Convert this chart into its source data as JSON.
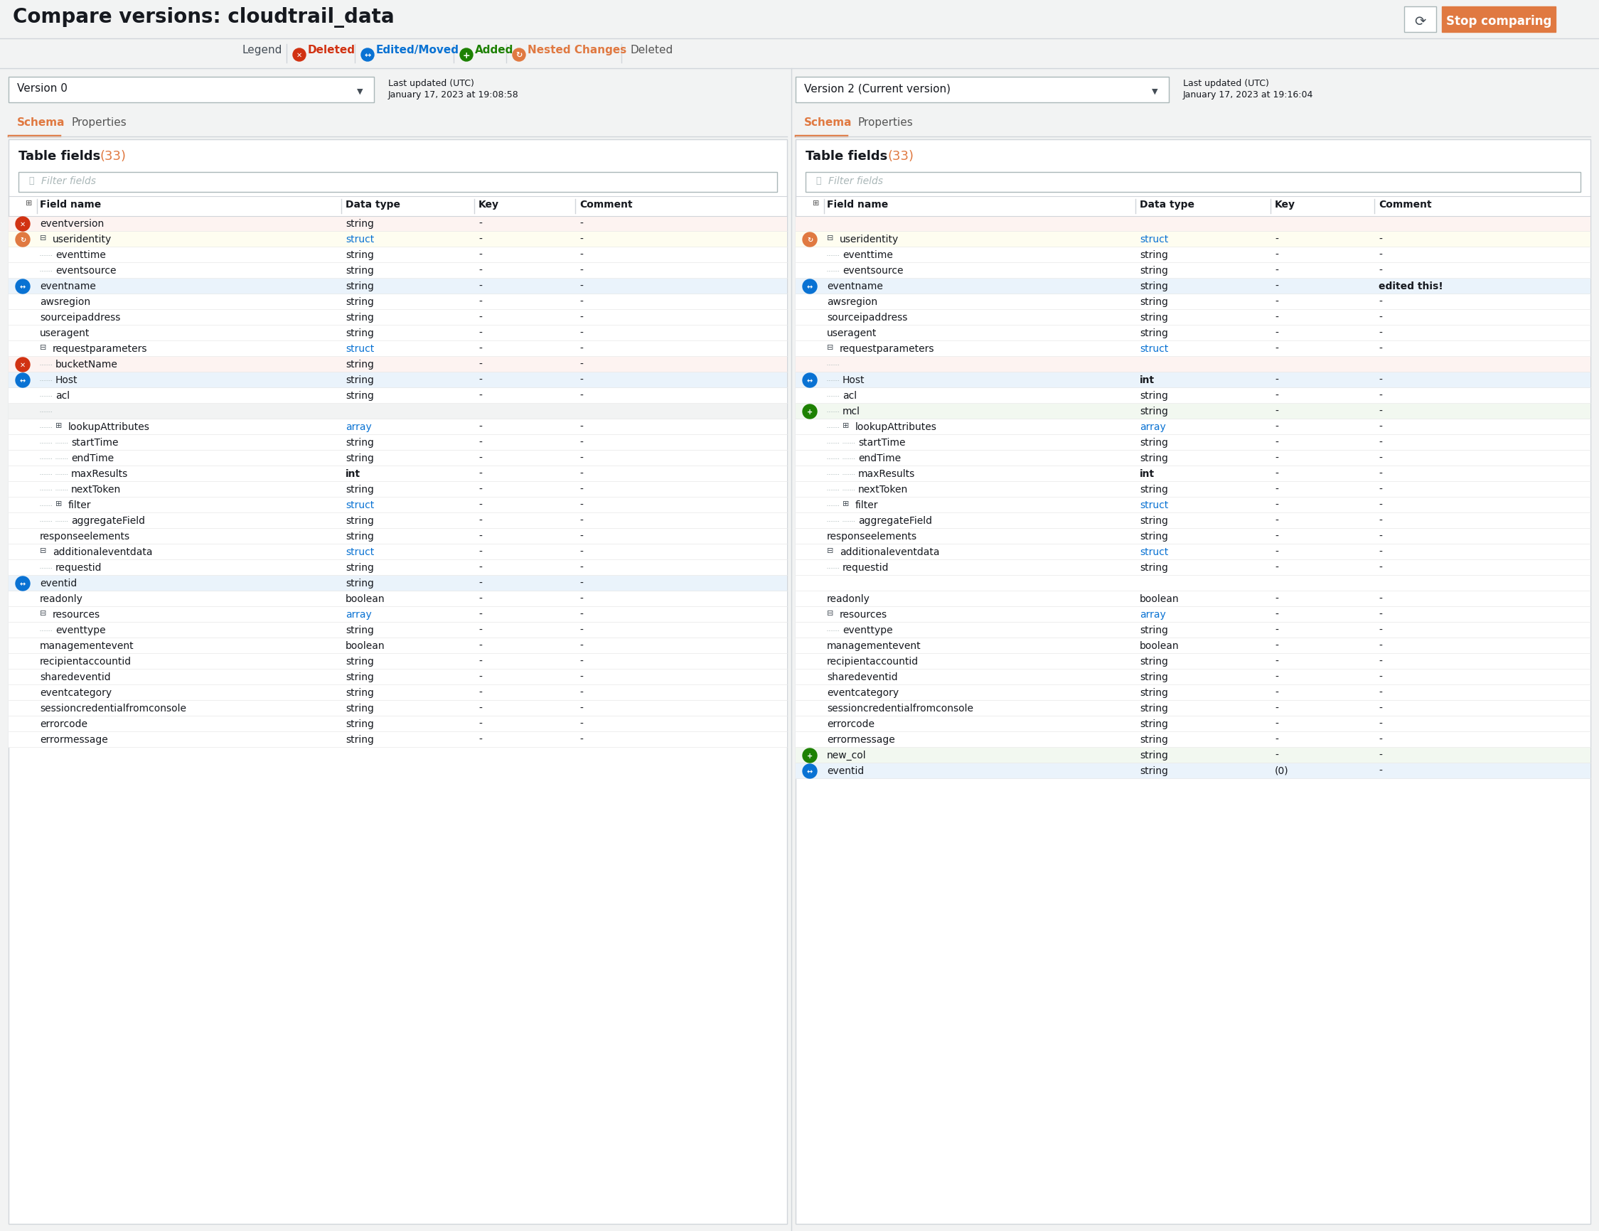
{
  "title": "Compare versions: cloudtrail_data",
  "bg_color": "#f2f3f3",
  "left_panel": {
    "version": "Version 0",
    "last_updated_line1": "Last updated (UTC)",
    "last_updated_line2": "January 17, 2023 at 19:08:58",
    "rows": [
      {
        "icon": "deleted",
        "indent": 0,
        "expand": false,
        "name": "eventversion",
        "dtype": "string",
        "key": "-",
        "comment": "-",
        "bg": "#fdf3f1"
      },
      {
        "icon": "nested",
        "indent": 0,
        "expand": true,
        "name": "useridentity",
        "dtype": "struct",
        "key": "-",
        "comment": "-",
        "bg": "#fefdf0"
      },
      {
        "icon": null,
        "indent": 1,
        "expand": false,
        "name": "eventtime",
        "dtype": "string",
        "key": "-",
        "comment": "-",
        "bg": "#ffffff"
      },
      {
        "icon": null,
        "indent": 1,
        "expand": false,
        "name": "eventsource",
        "dtype": "string",
        "key": "-",
        "comment": "-",
        "bg": "#ffffff"
      },
      {
        "icon": "edited",
        "indent": 0,
        "expand": false,
        "name": "eventname",
        "dtype": "string",
        "key": "-",
        "comment": "-",
        "bg": "#eaf3fb"
      },
      {
        "icon": null,
        "indent": 0,
        "expand": false,
        "name": "awsregion",
        "dtype": "string",
        "key": "-",
        "comment": "-",
        "bg": "#ffffff"
      },
      {
        "icon": null,
        "indent": 0,
        "expand": false,
        "name": "sourceipaddress",
        "dtype": "string",
        "key": "-",
        "comment": "-",
        "bg": "#ffffff"
      },
      {
        "icon": null,
        "indent": 0,
        "expand": false,
        "name": "useragent",
        "dtype": "string",
        "key": "-",
        "comment": "-",
        "bg": "#ffffff"
      },
      {
        "icon": null,
        "indent": 0,
        "expand": true,
        "name": "requestparameters",
        "dtype": "struct",
        "key": "-",
        "comment": "-",
        "bg": "#ffffff"
      },
      {
        "icon": "deleted",
        "indent": 1,
        "expand": false,
        "name": "bucketName",
        "dtype": "string",
        "key": "-",
        "comment": "-",
        "bg": "#fdf3f1"
      },
      {
        "icon": "edited",
        "indent": 1,
        "expand": false,
        "name": "Host",
        "dtype": "string",
        "key": "-",
        "comment": "-",
        "bg": "#eaf3fb"
      },
      {
        "icon": null,
        "indent": 1,
        "expand": false,
        "name": "acl",
        "dtype": "string",
        "key": "-",
        "comment": "-",
        "bg": "#ffffff"
      },
      {
        "icon": null,
        "indent": 1,
        "expand": false,
        "name": "",
        "dtype": "",
        "key": "",
        "comment": "",
        "bg": "#f2f3f3"
      },
      {
        "icon": null,
        "indent": 1,
        "expand": true,
        "name": "lookupAttributes",
        "dtype": "array",
        "key": "-",
        "comment": "-",
        "bg": "#ffffff"
      },
      {
        "icon": null,
        "indent": 2,
        "expand": false,
        "name": "startTime",
        "dtype": "string",
        "key": "-",
        "comment": "-",
        "bg": "#ffffff"
      },
      {
        "icon": null,
        "indent": 2,
        "expand": false,
        "name": "endTime",
        "dtype": "string",
        "key": "-",
        "comment": "-",
        "bg": "#ffffff"
      },
      {
        "icon": null,
        "indent": 2,
        "expand": false,
        "name": "maxResults",
        "dtype": "int",
        "key": "-",
        "comment": "-",
        "bg": "#ffffff"
      },
      {
        "icon": null,
        "indent": 2,
        "expand": false,
        "name": "nextToken",
        "dtype": "string",
        "key": "-",
        "comment": "-",
        "bg": "#ffffff"
      },
      {
        "icon": null,
        "indent": 1,
        "expand": true,
        "name": "filter",
        "dtype": "struct",
        "key": "-",
        "comment": "-",
        "bg": "#ffffff"
      },
      {
        "icon": null,
        "indent": 2,
        "expand": false,
        "name": "aggregateField",
        "dtype": "string",
        "key": "-",
        "comment": "-",
        "bg": "#ffffff"
      },
      {
        "icon": null,
        "indent": 0,
        "expand": false,
        "name": "responseelements",
        "dtype": "string",
        "key": "-",
        "comment": "-",
        "bg": "#ffffff"
      },
      {
        "icon": null,
        "indent": 0,
        "expand": true,
        "name": "additionaleventdata",
        "dtype": "struct",
        "key": "-",
        "comment": "-",
        "bg": "#ffffff"
      },
      {
        "icon": null,
        "indent": 1,
        "expand": false,
        "name": "requestid",
        "dtype": "string",
        "key": "-",
        "comment": "-",
        "bg": "#ffffff"
      },
      {
        "icon": "edited",
        "indent": 0,
        "expand": false,
        "name": "eventid",
        "dtype": "string",
        "key": "-",
        "comment": "-",
        "bg": "#eaf3fb"
      },
      {
        "icon": null,
        "indent": 0,
        "expand": false,
        "name": "readonly",
        "dtype": "boolean",
        "key": "-",
        "comment": "-",
        "bg": "#ffffff"
      },
      {
        "icon": null,
        "indent": 0,
        "expand": true,
        "name": "resources",
        "dtype": "array",
        "key": "-",
        "comment": "-",
        "bg": "#ffffff"
      },
      {
        "icon": null,
        "indent": 1,
        "expand": false,
        "name": "eventtype",
        "dtype": "string",
        "key": "-",
        "comment": "-",
        "bg": "#ffffff"
      },
      {
        "icon": null,
        "indent": 0,
        "expand": false,
        "name": "managementevent",
        "dtype": "boolean",
        "key": "-",
        "comment": "-",
        "bg": "#ffffff"
      },
      {
        "icon": null,
        "indent": 0,
        "expand": false,
        "name": "recipientaccountid",
        "dtype": "string",
        "key": "-",
        "comment": "-",
        "bg": "#ffffff"
      },
      {
        "icon": null,
        "indent": 0,
        "expand": false,
        "name": "sharedeventid",
        "dtype": "string",
        "key": "-",
        "comment": "-",
        "bg": "#ffffff"
      },
      {
        "icon": null,
        "indent": 0,
        "expand": false,
        "name": "eventcategory",
        "dtype": "string",
        "key": "-",
        "comment": "-",
        "bg": "#ffffff"
      },
      {
        "icon": null,
        "indent": 0,
        "expand": false,
        "name": "sessioncredentialfromconsole",
        "dtype": "string",
        "key": "-",
        "comment": "-",
        "bg": "#ffffff"
      },
      {
        "icon": null,
        "indent": 0,
        "expand": false,
        "name": "errorcode",
        "dtype": "string",
        "key": "-",
        "comment": "-",
        "bg": "#ffffff"
      },
      {
        "icon": null,
        "indent": 0,
        "expand": false,
        "name": "errormessage",
        "dtype": "string",
        "key": "-",
        "comment": "-",
        "bg": "#ffffff"
      }
    ]
  },
  "right_panel": {
    "version": "Version 2 (Current version)",
    "last_updated_line1": "Last updated (UTC)",
    "last_updated_line2": "January 17, 2023 at 19:16:04",
    "rows": [
      {
        "icon": null,
        "indent": 0,
        "expand": false,
        "name": "",
        "dtype": "",
        "key": "",
        "comment": "",
        "bg": "#fdf3f1"
      },
      {
        "icon": "nested",
        "indent": 0,
        "expand": true,
        "name": "useridentity",
        "dtype": "struct",
        "key": "-",
        "comment": "-",
        "bg": "#fefdf0"
      },
      {
        "icon": null,
        "indent": 1,
        "expand": false,
        "name": "eventtime",
        "dtype": "string",
        "key": "-",
        "comment": "-",
        "bg": "#ffffff"
      },
      {
        "icon": null,
        "indent": 1,
        "expand": false,
        "name": "eventsource",
        "dtype": "string",
        "key": "-",
        "comment": "-",
        "bg": "#ffffff"
      },
      {
        "icon": "edited",
        "indent": 0,
        "expand": false,
        "name": "eventname",
        "dtype": "string",
        "key": "-",
        "comment": "edited this!",
        "bg": "#eaf3fb"
      },
      {
        "icon": null,
        "indent": 0,
        "expand": false,
        "name": "awsregion",
        "dtype": "string",
        "key": "-",
        "comment": "-",
        "bg": "#ffffff"
      },
      {
        "icon": null,
        "indent": 0,
        "expand": false,
        "name": "sourceipaddress",
        "dtype": "string",
        "key": "-",
        "comment": "-",
        "bg": "#ffffff"
      },
      {
        "icon": null,
        "indent": 0,
        "expand": false,
        "name": "useragent",
        "dtype": "string",
        "key": "-",
        "comment": "-",
        "bg": "#ffffff"
      },
      {
        "icon": null,
        "indent": 0,
        "expand": true,
        "name": "requestparameters",
        "dtype": "struct",
        "key": "-",
        "comment": "-",
        "bg": "#ffffff"
      },
      {
        "icon": null,
        "indent": 1,
        "expand": false,
        "name": "",
        "dtype": "",
        "key": "",
        "comment": "",
        "bg": "#fdf3f1"
      },
      {
        "icon": "edited",
        "indent": 1,
        "expand": false,
        "name": "Host",
        "dtype": "int",
        "key": "-",
        "comment": "-",
        "bg": "#eaf3fb"
      },
      {
        "icon": null,
        "indent": 1,
        "expand": false,
        "name": "acl",
        "dtype": "string",
        "key": "-",
        "comment": "-",
        "bg": "#ffffff"
      },
      {
        "icon": "added",
        "indent": 1,
        "expand": false,
        "name": "mcl",
        "dtype": "string",
        "key": "-",
        "comment": "-",
        "bg": "#f2f8f0"
      },
      {
        "icon": null,
        "indent": 1,
        "expand": true,
        "name": "lookupAttributes",
        "dtype": "array",
        "key": "-",
        "comment": "-",
        "bg": "#ffffff"
      },
      {
        "icon": null,
        "indent": 2,
        "expand": false,
        "name": "startTime",
        "dtype": "string",
        "key": "-",
        "comment": "-",
        "bg": "#ffffff"
      },
      {
        "icon": null,
        "indent": 2,
        "expand": false,
        "name": "endTime",
        "dtype": "string",
        "key": "-",
        "comment": "-",
        "bg": "#ffffff"
      },
      {
        "icon": null,
        "indent": 2,
        "expand": false,
        "name": "maxResults",
        "dtype": "int",
        "key": "-",
        "comment": "-",
        "bg": "#ffffff"
      },
      {
        "icon": null,
        "indent": 2,
        "expand": false,
        "name": "nextToken",
        "dtype": "string",
        "key": "-",
        "comment": "-",
        "bg": "#ffffff"
      },
      {
        "icon": null,
        "indent": 1,
        "expand": true,
        "name": "filter",
        "dtype": "struct",
        "key": "-",
        "comment": "-",
        "bg": "#ffffff"
      },
      {
        "icon": null,
        "indent": 2,
        "expand": false,
        "name": "aggregateField",
        "dtype": "string",
        "key": "-",
        "comment": "-",
        "bg": "#ffffff"
      },
      {
        "icon": null,
        "indent": 0,
        "expand": false,
        "name": "responseelements",
        "dtype": "string",
        "key": "-",
        "comment": "-",
        "bg": "#ffffff"
      },
      {
        "icon": null,
        "indent": 0,
        "expand": true,
        "name": "additionaleventdata",
        "dtype": "struct",
        "key": "-",
        "comment": "-",
        "bg": "#ffffff"
      },
      {
        "icon": null,
        "indent": 1,
        "expand": false,
        "name": "requestid",
        "dtype": "string",
        "key": "-",
        "comment": "-",
        "bg": "#ffffff"
      },
      {
        "icon": null,
        "indent": 0,
        "expand": false,
        "name": "",
        "dtype": "",
        "key": "",
        "comment": "",
        "bg": "#ffffff"
      },
      {
        "icon": null,
        "indent": 0,
        "expand": false,
        "name": "readonly",
        "dtype": "boolean",
        "key": "-",
        "comment": "-",
        "bg": "#ffffff"
      },
      {
        "icon": null,
        "indent": 0,
        "expand": true,
        "name": "resources",
        "dtype": "array",
        "key": "-",
        "comment": "-",
        "bg": "#ffffff"
      },
      {
        "icon": null,
        "indent": 1,
        "expand": false,
        "name": "eventtype",
        "dtype": "string",
        "key": "-",
        "comment": "-",
        "bg": "#ffffff"
      },
      {
        "icon": null,
        "indent": 0,
        "expand": false,
        "name": "managementevent",
        "dtype": "boolean",
        "key": "-",
        "comment": "-",
        "bg": "#ffffff"
      },
      {
        "icon": null,
        "indent": 0,
        "expand": false,
        "name": "recipientaccountid",
        "dtype": "string",
        "key": "-",
        "comment": "-",
        "bg": "#ffffff"
      },
      {
        "icon": null,
        "indent": 0,
        "expand": false,
        "name": "sharedeventid",
        "dtype": "string",
        "key": "-",
        "comment": "-",
        "bg": "#ffffff"
      },
      {
        "icon": null,
        "indent": 0,
        "expand": false,
        "name": "eventcategory",
        "dtype": "string",
        "key": "-",
        "comment": "-",
        "bg": "#ffffff"
      },
      {
        "icon": null,
        "indent": 0,
        "expand": false,
        "name": "sessioncredentialfromconsole",
        "dtype": "string",
        "key": "-",
        "comment": "-",
        "bg": "#ffffff"
      },
      {
        "icon": null,
        "indent": 0,
        "expand": false,
        "name": "errorcode",
        "dtype": "string",
        "key": "-",
        "comment": "-",
        "bg": "#ffffff"
      },
      {
        "icon": null,
        "indent": 0,
        "expand": false,
        "name": "errormessage",
        "dtype": "string",
        "key": "-",
        "comment": "-",
        "bg": "#ffffff"
      },
      {
        "icon": "added",
        "indent": 0,
        "expand": false,
        "name": "new_col",
        "dtype": "string",
        "key": "-",
        "comment": "-",
        "bg": "#f2f8f0"
      },
      {
        "icon": "edited",
        "indent": 0,
        "expand": false,
        "name": "eventid",
        "dtype": "string",
        "key": "(0)",
        "comment": "-",
        "bg": "#eaf3fb"
      }
    ]
  }
}
